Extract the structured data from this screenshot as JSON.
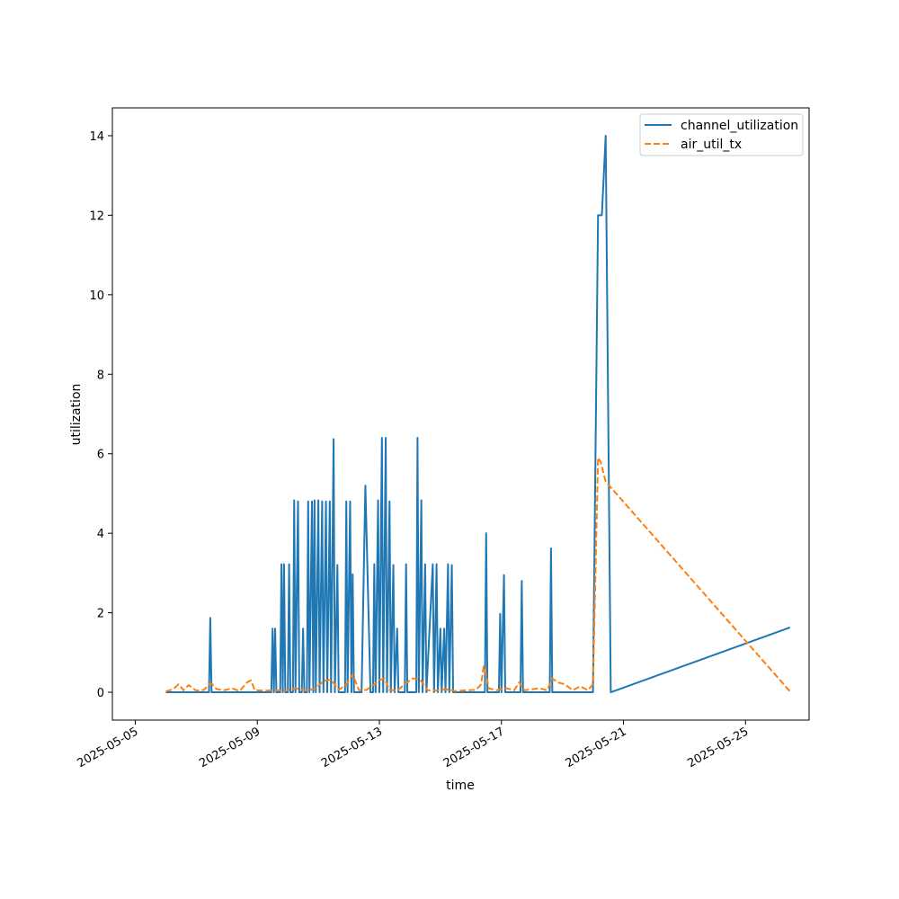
{
  "chart_data": {
    "type": "line",
    "title": "",
    "xlabel": "time",
    "ylabel": "utilization",
    "xlim": [
      "2025-05-04T06:00",
      "2025-05-27T02:00"
    ],
    "ylim": [
      -0.7,
      14.7
    ],
    "x_ticks": [
      "2025-05-05",
      "2025-05-09",
      "2025-05-13",
      "2025-05-17",
      "2025-05-21",
      "2025-05-25"
    ],
    "y_ticks": [
      0,
      2,
      4,
      6,
      8,
      10,
      12,
      14
    ],
    "grid": false,
    "legend": {
      "position": "top-right"
    },
    "series": [
      {
        "name": "channel_utilization",
        "color": "#1f77b4",
        "style": "solid",
        "points": [
          [
            "2025-05-06T00:00",
            0
          ],
          [
            "2025-05-07T10:00",
            0
          ],
          [
            "2025-05-07T11:00",
            1.87
          ],
          [
            "2025-05-07T12:00",
            0
          ],
          [
            "2025-05-09T11:00",
            0
          ],
          [
            "2025-05-09T12:00",
            1.6
          ],
          [
            "2025-05-09T13:00",
            0
          ],
          [
            "2025-05-09T14:00",
            1.6
          ],
          [
            "2025-05-09T15:00",
            0
          ],
          [
            "2025-05-09T18:00",
            0
          ],
          [
            "2025-05-09T19:00",
            3.22
          ],
          [
            "2025-05-09T20:00",
            0
          ],
          [
            "2025-05-09T21:00",
            3.22
          ],
          [
            "2025-05-09T22:00",
            0
          ],
          [
            "2025-05-10T00:00",
            0
          ],
          [
            "2025-05-10T01:00",
            3.22
          ],
          [
            "2025-05-10T02:00",
            0
          ],
          [
            "2025-05-10T04:00",
            0
          ],
          [
            "2025-05-10T05:00",
            4.83
          ],
          [
            "2025-05-10T06:00",
            0
          ],
          [
            "2025-05-10T08:00",
            4.8
          ],
          [
            "2025-05-10T09:00",
            0
          ],
          [
            "2025-05-10T11:00",
            0
          ],
          [
            "2025-05-10T12:00",
            1.6
          ],
          [
            "2025-05-10T13:00",
            0
          ],
          [
            "2025-05-10T15:00",
            0
          ],
          [
            "2025-05-10T16:00",
            4.8
          ],
          [
            "2025-05-10T17:00",
            0
          ],
          [
            "2025-05-10T19:00",
            4.8
          ],
          [
            "2025-05-10T20:00",
            0
          ],
          [
            "2025-05-10T21:00",
            4.83
          ],
          [
            "2025-05-10T22:00",
            0
          ],
          [
            "2025-05-11T00:00",
            4.83
          ],
          [
            "2025-05-11T01:00",
            0
          ],
          [
            "2025-05-11T03:00",
            4.8
          ],
          [
            "2025-05-11T04:00",
            0
          ],
          [
            "2025-05-11T06:00",
            4.8
          ],
          [
            "2025-05-11T07:00",
            0
          ],
          [
            "2025-05-11T09:00",
            4.8
          ],
          [
            "2025-05-11T10:00",
            0
          ],
          [
            "2025-05-11T12:00",
            6.37
          ],
          [
            "2025-05-11T13:00",
            0
          ],
          [
            "2025-05-11T15:00",
            3.2
          ],
          [
            "2025-05-11T16:00",
            0
          ],
          [
            "2025-05-11T21:00",
            0
          ],
          [
            "2025-05-11T22:00",
            4.8
          ],
          [
            "2025-05-11T23:00",
            0
          ],
          [
            "2025-05-12T01:00",
            4.8
          ],
          [
            "2025-05-12T02:00",
            0
          ],
          [
            "2025-05-12T03:00",
            2.97
          ],
          [
            "2025-05-12T04:00",
            0
          ],
          [
            "2025-05-12T10:00",
            0
          ],
          [
            "2025-05-12T13:00",
            5.2
          ],
          [
            "2025-05-12T17:00",
            0
          ],
          [
            "2025-05-12T19:00",
            0
          ],
          [
            "2025-05-12T20:00",
            3.22
          ],
          [
            "2025-05-12T21:00",
            0
          ],
          [
            "2025-05-12T23:00",
            4.83
          ],
          [
            "2025-05-13T00:00",
            0
          ],
          [
            "2025-05-13T02:00",
            6.4
          ],
          [
            "2025-05-13T03:00",
            0
          ],
          [
            "2025-05-13T05:00",
            6.4
          ],
          [
            "2025-05-13T06:00",
            0
          ],
          [
            "2025-05-13T08:00",
            4.8
          ],
          [
            "2025-05-13T09:00",
            0
          ],
          [
            "2025-05-13T11:00",
            3.2
          ],
          [
            "2025-05-13T12:00",
            0
          ],
          [
            "2025-05-13T14:00",
            1.6
          ],
          [
            "2025-05-13T15:00",
            0
          ],
          [
            "2025-05-13T20:00",
            0
          ],
          [
            "2025-05-13T21:00",
            3.22
          ],
          [
            "2025-05-13T22:00",
            0
          ],
          [
            "2025-05-14T05:00",
            0
          ],
          [
            "2025-05-14T06:00",
            6.4
          ],
          [
            "2025-05-14T07:00",
            0
          ],
          [
            "2025-05-14T09:00",
            4.83
          ],
          [
            "2025-05-14T10:00",
            0
          ],
          [
            "2025-05-14T12:00",
            3.22
          ],
          [
            "2025-05-14T13:00",
            0
          ],
          [
            "2025-05-14T18:00",
            3.22
          ],
          [
            "2025-05-14T19:00",
            0
          ],
          [
            "2025-05-14T21:00",
            3.22
          ],
          [
            "2025-05-14T22:00",
            0
          ],
          [
            "2025-05-15T00:00",
            1.6
          ],
          [
            "2025-05-15T01:00",
            0
          ],
          [
            "2025-05-15T03:00",
            1.6
          ],
          [
            "2025-05-15T04:00",
            0
          ],
          [
            "2025-05-15T06:00",
            3.22
          ],
          [
            "2025-05-15T07:00",
            0
          ],
          [
            "2025-05-15T09:00",
            3.2
          ],
          [
            "2025-05-15T10:00",
            0
          ],
          [
            "2025-05-16T11:00",
            0
          ],
          [
            "2025-05-16T12:00",
            4.0
          ],
          [
            "2025-05-16T13:00",
            0
          ],
          [
            "2025-05-16T22:00",
            0
          ],
          [
            "2025-05-16T23:00",
            1.97
          ],
          [
            "2025-05-17T00:00",
            0
          ],
          [
            "2025-05-17T02:00",
            2.95
          ],
          [
            "2025-05-17T03:00",
            0
          ],
          [
            "2025-05-17T15:00",
            0
          ],
          [
            "2025-05-17T16:00",
            2.8
          ],
          [
            "2025-05-17T17:00",
            0
          ],
          [
            "2025-05-18T14:00",
            0
          ],
          [
            "2025-05-18T15:00",
            3.62
          ],
          [
            "2025-05-18T16:00",
            0
          ],
          [
            "2025-05-20T00:00",
            0
          ],
          [
            "2025-05-20T04:00",
            12.0
          ],
          [
            "2025-05-20T07:00",
            12.0
          ],
          [
            "2025-05-20T10:00",
            14.0
          ],
          [
            "2025-05-20T14:00",
            0
          ],
          [
            "2025-05-26T11:00",
            1.63
          ]
        ]
      },
      {
        "name": "air_util_tx",
        "color": "#ff7f0e",
        "style": "dashed",
        "points": [
          [
            "2025-05-06T00:00",
            0.02
          ],
          [
            "2025-05-06T06:00",
            0.08
          ],
          [
            "2025-05-06T10:00",
            0.2
          ],
          [
            "2025-05-06T14:00",
            0.05
          ],
          [
            "2025-05-06T18:00",
            0.18
          ],
          [
            "2025-05-07T00:00",
            0.04
          ],
          [
            "2025-05-07T06:00",
            0.06
          ],
          [
            "2025-05-07T10:00",
            0.2
          ],
          [
            "2025-05-07T12:00",
            0.22
          ],
          [
            "2025-05-07T16:00",
            0.08
          ],
          [
            "2025-05-07T22:00",
            0.05
          ],
          [
            "2025-05-08T04:00",
            0.1
          ],
          [
            "2025-05-08T10:00",
            0.03
          ],
          [
            "2025-05-08T16:00",
            0.25
          ],
          [
            "2025-05-08T19:00",
            0.3
          ],
          [
            "2025-05-08T22:00",
            0.05
          ],
          [
            "2025-05-09T06:00",
            0.04
          ],
          [
            "2025-05-09T14:00",
            0.05
          ],
          [
            "2025-05-09T22:00",
            0.04
          ],
          [
            "2025-05-10T06:00",
            0.1
          ],
          [
            "2025-05-10T14:00",
            0.04
          ],
          [
            "2025-05-10T22:00",
            0.1
          ],
          [
            "2025-05-11T04:00",
            0.28
          ],
          [
            "2025-05-11T10:00",
            0.32
          ],
          [
            "2025-05-11T16:00",
            0.06
          ],
          [
            "2025-05-11T22:00",
            0.2
          ],
          [
            "2025-05-12T03:00",
            0.45
          ],
          [
            "2025-05-12T08:00",
            0.05
          ],
          [
            "2025-05-12T14:00",
            0.06
          ],
          [
            "2025-05-12T20:00",
            0.2
          ],
          [
            "2025-05-13T00:00",
            0.3
          ],
          [
            "2025-05-13T04:00",
            0.35
          ],
          [
            "2025-05-13T08:00",
            0.06
          ],
          [
            "2025-05-13T14:00",
            0.04
          ],
          [
            "2025-05-13T20:00",
            0.2
          ],
          [
            "2025-05-14T02:00",
            0.35
          ],
          [
            "2025-05-14T08:00",
            0.32
          ],
          [
            "2025-05-14T14:00",
            0.05
          ],
          [
            "2025-05-14T20:00",
            0.04
          ],
          [
            "2025-05-15T04:00",
            0.08
          ],
          [
            "2025-05-15T12:00",
            0.03
          ],
          [
            "2025-05-15T20:00",
            0.05
          ],
          [
            "2025-05-16T04:00",
            0.06
          ],
          [
            "2025-05-16T08:00",
            0.2
          ],
          [
            "2025-05-16T10:00",
            0.65
          ],
          [
            "2025-05-16T12:00",
            0.45
          ],
          [
            "2025-05-16T14:00",
            0.1
          ],
          [
            "2025-05-16T20:00",
            0.05
          ],
          [
            "2025-05-17T04:00",
            0.1
          ],
          [
            "2025-05-17T10:00",
            0.05
          ],
          [
            "2025-05-17T14:00",
            0.25
          ],
          [
            "2025-05-17T18:00",
            0.05
          ],
          [
            "2025-05-18T06:00",
            0.1
          ],
          [
            "2025-05-18T12:00",
            0.05
          ],
          [
            "2025-05-18T16:00",
            0.35
          ],
          [
            "2025-05-18T20:00",
            0.25
          ],
          [
            "2025-05-19T02:00",
            0.2
          ],
          [
            "2025-05-19T08:00",
            0.05
          ],
          [
            "2025-05-19T14:00",
            0.15
          ],
          [
            "2025-05-19T20:00",
            0.05
          ],
          [
            "2025-05-20T00:00",
            0.2
          ],
          [
            "2025-05-20T04:00",
            5.9
          ],
          [
            "2025-05-20T06:00",
            5.8
          ],
          [
            "2025-05-20T10:00",
            5.3
          ],
          [
            "2025-05-26T11:00",
            0.02
          ]
        ]
      }
    ]
  }
}
